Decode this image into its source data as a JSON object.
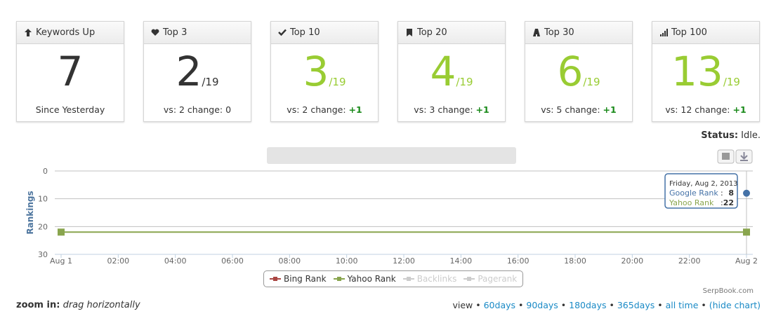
{
  "cards": [
    {
      "title": "Keywords Up",
      "value": 7,
      "value_color": "#333333",
      "sub": "Since Yesterday"
    },
    {
      "title": "Top 3",
      "value": 2,
      "value_color": "#333333",
      "denominator": "/19",
      "sub": "vs: 2 change:",
      "change": "0",
      "change_highlight": false
    },
    {
      "title": "Top 10",
      "value": 3,
      "value_color": "#99cc33",
      "denominator": "/19",
      "sub": "vs: 2 change:",
      "change": "+1",
      "change_highlight": true
    },
    {
      "title": "Top 20",
      "value": 4,
      "value_color": "#99cc33",
      "denominator": "/19",
      "sub": "vs: 3 change:",
      "change": "+1",
      "change_highlight": true
    },
    {
      "title": "Top 30",
      "value": 6,
      "value_color": "#99cc33",
      "denominator": "/19",
      "sub": "vs: 5 change:",
      "change": "+1",
      "change_highlight": true
    },
    {
      "title": "Top 100",
      "value": 13,
      "value_color": "#99cc33",
      "denominator": "/19",
      "sub": "vs: 12 change:",
      "change": "+1",
      "change_highlight": true
    }
  ],
  "status": {
    "label": "Status:",
    "value": "Idle."
  },
  "chart": {
    "ylabel": "Rankings",
    "ylim": [
      30,
      0
    ],
    "yticks": [
      0,
      10,
      20,
      30
    ],
    "grid": true,
    "xlim": [
      0,
      24
    ],
    "xticks": [
      {
        "value": 0,
        "label": "Aug 1"
      },
      {
        "value": 2,
        "label": "02:00"
      },
      {
        "value": 4,
        "label": "04:00"
      },
      {
        "value": 6,
        "label": "06:00"
      },
      {
        "value": 8,
        "label": "08:00"
      },
      {
        "value": 10,
        "label": "10:00"
      },
      {
        "value": 12,
        "label": "12:00"
      },
      {
        "value": 14,
        "label": "14:00"
      },
      {
        "value": 16,
        "label": "16:00"
      },
      {
        "value": 18,
        "label": "18:00"
      },
      {
        "value": 20,
        "label": "20:00"
      },
      {
        "value": 22,
        "label": "22:00"
      },
      {
        "value": 24,
        "label": "Aug 2"
      }
    ],
    "series": [
      {
        "name": "Google Rank",
        "color": "#4572a7",
        "marker": "circle",
        "x": [
          24
        ],
        "values": [
          8
        ]
      },
      {
        "name": "Yahoo Rank",
        "color": "#89a54e",
        "marker": "square",
        "x": [
          0,
          24
        ],
        "values": [
          22,
          22
        ]
      }
    ],
    "tooltip": {
      "date": "Friday, Aug 2, 2013",
      "separator": ":"
    },
    "legend": [
      {
        "name": "Bing Rank",
        "color": "#aa4643",
        "enabled": true
      },
      {
        "name": "Yahoo Rank",
        "color": "#89a54e",
        "enabled": true
      },
      {
        "name": "Backlinks",
        "color": "#cccccc",
        "enabled": false
      },
      {
        "name": "Pagerank",
        "color": "#cccccc",
        "enabled": false
      }
    ],
    "credit": "SerpBook.com"
  },
  "footer": {
    "zoom_label": "zoom in:",
    "zoom_hint": "drag horizontally",
    "view_label": "view",
    "separator": "•",
    "links": [
      "60days",
      "90days",
      "180days",
      "365days",
      "all time",
      "(hide chart)"
    ]
  }
}
